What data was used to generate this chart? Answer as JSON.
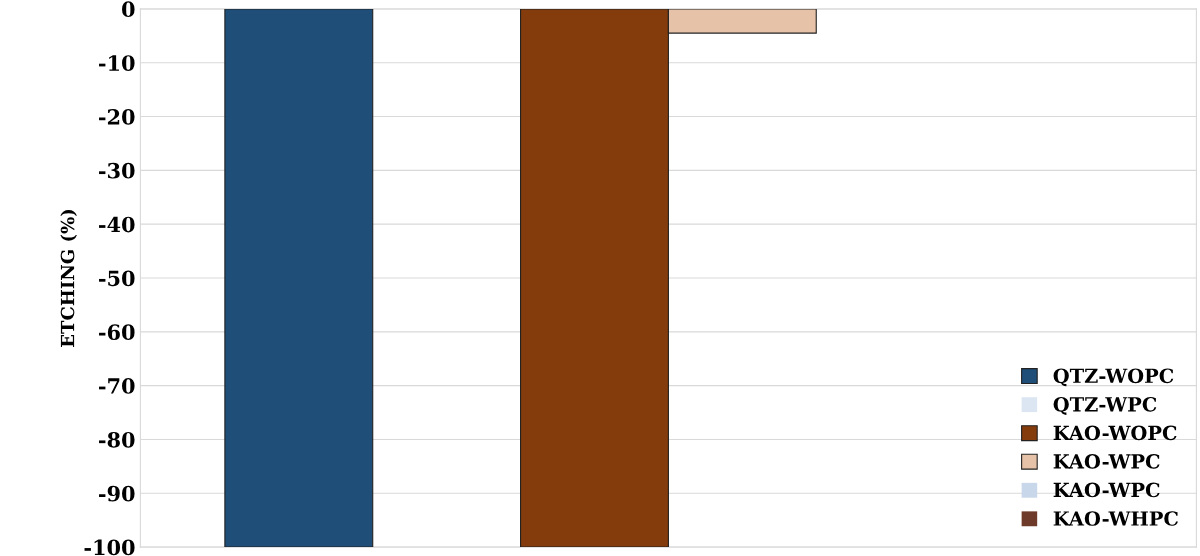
{
  "chart_data": {
    "type": "bar",
    "ylabel": "ETCHING (%)",
    "categories": [
      null
    ],
    "series": [
      {
        "name": "QTZ-WOPC",
        "color": "#1f4e79",
        "values": [
          -100
        ]
      },
      {
        "name": "QTZ-WPC",
        "color": "#dce6f2",
        "values": [
          0
        ]
      },
      {
        "name": "KAO-WOPC",
        "color": "#843c0c",
        "values": [
          -100
        ]
      },
      {
        "name": "KAO-WPC",
        "color": "#e6c3a8",
        "values": [
          -4.5
        ]
      },
      {
        "name": "KAO-WPC",
        "color": "#c9d7ea",
        "values": [
          0
        ]
      },
      {
        "name": "KAO-WHPC",
        "color": "#6e3b2a",
        "values": [
          0
        ]
      }
    ],
    "ylim": [
      -100,
      0
    ],
    "yticks": [
      0,
      -10,
      -20,
      -30,
      -40,
      -50,
      -60,
      -70,
      -80,
      -90,
      -100
    ],
    "grid": "y",
    "legend": "bottom right"
  }
}
